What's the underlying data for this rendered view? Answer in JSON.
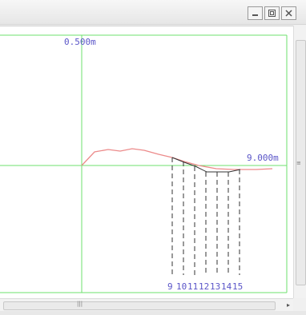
{
  "labels": {
    "top_value": "0.500m",
    "right_value": "9.000m",
    "markers": [
      "9",
      "10",
      "11",
      "12",
      "13",
      "14",
      "15"
    ]
  },
  "icons": {
    "minimize": "minimize-icon",
    "restore": "restore-icon",
    "close": "close-icon"
  },
  "colors": {
    "grid": "#6ee26e",
    "profile": "#ec8a8a",
    "structure": "#333333",
    "label": "#5a55c8"
  }
}
